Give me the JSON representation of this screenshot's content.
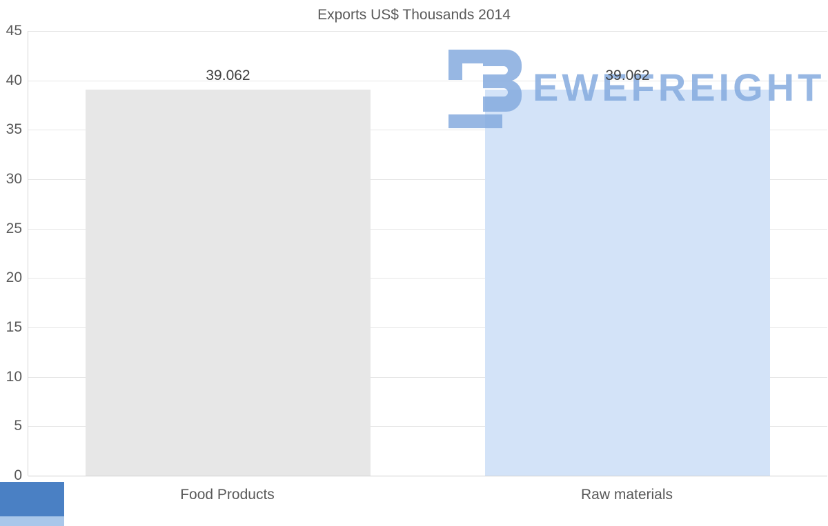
{
  "chart_data": {
    "type": "bar",
    "title": "Exports US$ Thousands 2014",
    "categories": [
      "Food Products",
      "Raw materials"
    ],
    "values": [
      39.062,
      39.062
    ],
    "value_labels": [
      "39.062",
      "39.062"
    ],
    "bar_colors": [
      "#e7e7e7",
      "#d3e3f8"
    ],
    "xlabel": "",
    "ylabel": "",
    "ylim": [
      0,
      45
    ],
    "y_ticks": [
      0,
      5,
      10,
      15,
      20,
      25,
      30,
      35,
      40,
      45
    ],
    "grid": true,
    "legend": false
  },
  "watermark": {
    "text": "EWEFREIGHT",
    "color": "#85abdf"
  },
  "decor": {
    "corner_block_color": "#4a80c4",
    "corner_block_stripe_color": "#a9c7ea"
  }
}
